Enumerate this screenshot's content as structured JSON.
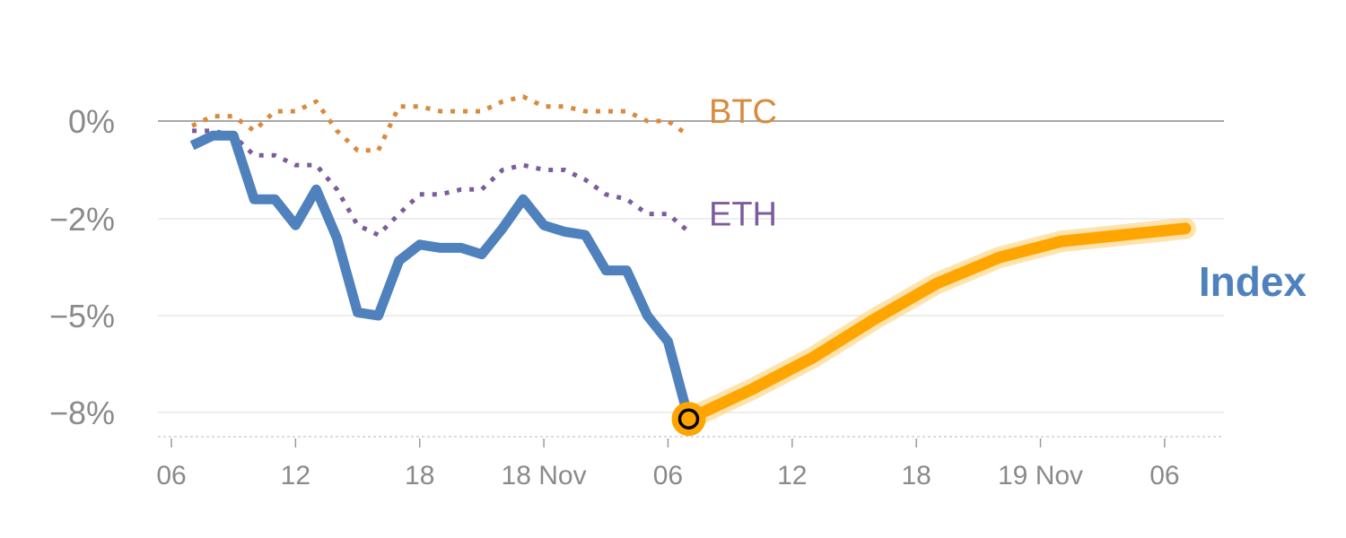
{
  "chart_data": {
    "type": "line",
    "title": "",
    "xlabel": "",
    "ylabel": "",
    "y_ticks": [
      {
        "value": 0,
        "label": "0%"
      },
      {
        "value": -2,
        "label": "−2%"
      },
      {
        "value": -5,
        "label": "−5%"
      },
      {
        "value": -8,
        "label": "−8%"
      }
    ],
    "x_ticks": [
      {
        "x": 0,
        "label": "06"
      },
      {
        "x": 6,
        "label": "12"
      },
      {
        "x": 12,
        "label": "18"
      },
      {
        "x": 18,
        "label": "18 Nov"
      },
      {
        "x": 24,
        "label": "06"
      },
      {
        "x": 30,
        "label": "12"
      },
      {
        "x": 36,
        "label": "18"
      },
      {
        "x": 42,
        "label": "19 Nov"
      },
      {
        "x": 48,
        "label": "06"
      }
    ],
    "x_unit": "hours",
    "xlim": [
      -0.5,
      50.5
    ],
    "grid": "horizontal",
    "series": [
      {
        "name": "BTC",
        "color": "#d98a3d",
        "style": "dotted",
        "x": [
          1,
          2,
          3,
          4,
          5,
          6,
          7,
          8,
          9,
          10,
          11,
          12,
          13,
          14,
          15,
          16,
          17,
          18,
          19,
          20,
          21,
          22,
          23,
          24,
          25
        ],
        "y": [
          -0.1,
          0.1,
          0.1,
          -0.2,
          0.2,
          0.2,
          0.4,
          -0.2,
          -0.6,
          -0.6,
          0.3,
          0.3,
          0.2,
          0.2,
          0.2,
          0.4,
          0.5,
          0.3,
          0.3,
          0.2,
          0.2,
          0.2,
          0.0,
          0.0,
          -0.3
        ],
        "label": "BTC"
      },
      {
        "name": "ETH",
        "color": "#7c5c9c",
        "style": "dotted",
        "x": [
          1,
          2,
          3,
          4,
          5,
          6,
          7,
          8,
          9,
          10,
          11,
          12,
          13,
          14,
          15,
          16,
          17,
          18,
          19,
          20,
          21,
          22,
          23,
          24,
          25
        ],
        "y": [
          -0.2,
          -0.2,
          -0.3,
          -0.7,
          -0.7,
          -0.9,
          -0.9,
          -1.4,
          -2.2,
          -2.5,
          -1.9,
          -1.5,
          -1.5,
          -1.4,
          -1.4,
          -1.0,
          -0.9,
          -1.0,
          -1.0,
          -1.2,
          -1.5,
          -1.6,
          -1.9,
          -1.9,
          -2.4
        ],
        "label": "ETH"
      },
      {
        "name": "Index",
        "color": "#4f81bd",
        "style": "solid",
        "x": [
          1,
          2,
          3,
          4,
          5,
          6,
          7,
          8,
          9,
          10,
          11,
          12,
          13,
          14,
          15,
          16,
          17,
          18,
          19,
          20,
          21,
          22,
          23,
          24,
          25
        ],
        "y": [
          -0.5,
          -0.3,
          -0.3,
          -1.6,
          -1.6,
          -2.2,
          -1.4,
          -2.6,
          -4.9,
          -5.0,
          -3.3,
          -2.8,
          -2.9,
          -2.9,
          -3.1,
          -2.3,
          -1.6,
          -2.2,
          -2.4,
          -2.5,
          -3.6,
          -3.6,
          -5.0,
          -5.8,
          -8.2
        ],
        "label": "Index"
      },
      {
        "name": "Index",
        "color": "#ffa500",
        "style": "thick-solid",
        "x": [
          25,
          28,
          31,
          34,
          37,
          40,
          43,
          46,
          49
        ],
        "y": [
          -8.2,
          -7.3,
          -6.3,
          -5.1,
          -4.0,
          -3.2,
          -2.7,
          -2.5,
          -2.3
        ]
      }
    ],
    "marker": {
      "x": 25,
      "y": -8.2,
      "fill": "#ffa500",
      "stroke": "#000000"
    }
  }
}
